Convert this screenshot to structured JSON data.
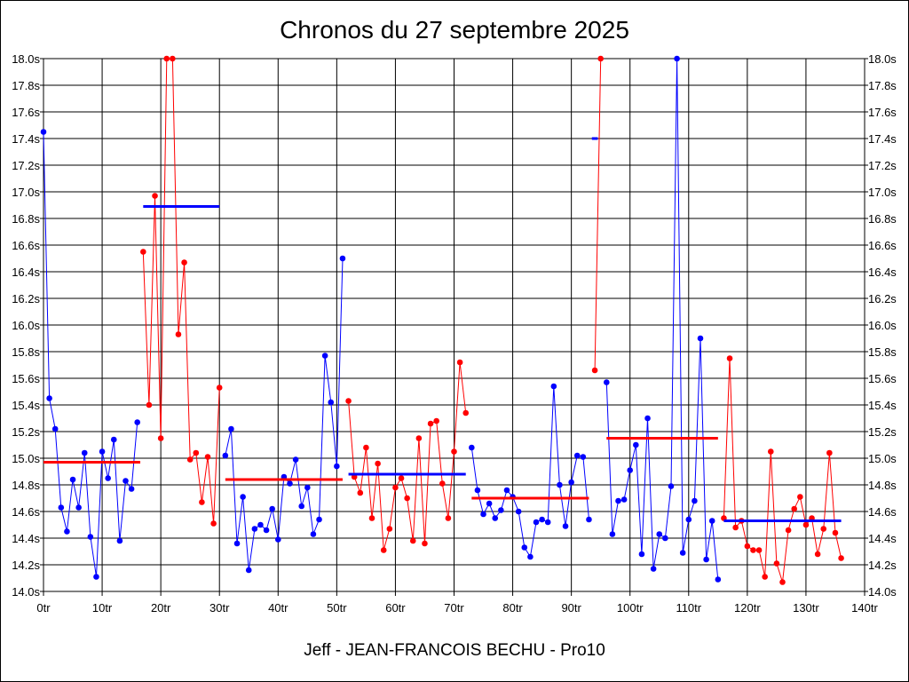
{
  "chart_data": {
    "type": "line",
    "title": "Chronos du 27 septembre 2025",
    "footer": "Jeff - JEAN-FRANCOIS BECHU - Pro10",
    "xlabel": "",
    "ylabel": "",
    "xlim": [
      0,
      140
    ],
    "ylim": [
      14.0,
      18.0
    ],
    "x_ticks": [
      "0tr",
      "10tr",
      "20tr",
      "30tr",
      "40tr",
      "50tr",
      "60tr",
      "70tr",
      "80tr",
      "90tr",
      "100tr",
      "110tr",
      "120tr",
      "130tr",
      "140tr"
    ],
    "y_ticks": [
      "14.0s",
      "14.2s",
      "14.4s",
      "14.6s",
      "14.8s",
      "15.0s",
      "15.2s",
      "15.4s",
      "15.6s",
      "15.8s",
      "16.0s",
      "16.2s",
      "16.4s",
      "16.6s",
      "16.8s",
      "17.0s",
      "17.2s",
      "17.4s",
      "17.6s",
      "17.8s",
      "18.0s"
    ],
    "grid": true,
    "colors": {
      "blue": "#0000ff",
      "red": "#ff0000"
    },
    "segments": [
      {
        "color": "blue",
        "mean": 14.97,
        "mean_range": [
          0,
          16.5
        ],
        "points": [
          [
            0,
            17.45
          ],
          [
            1,
            15.45
          ],
          [
            2,
            15.22
          ],
          [
            3,
            14.63
          ],
          [
            4,
            14.45
          ],
          [
            5,
            14.84
          ],
          [
            6,
            14.63
          ],
          [
            7,
            15.04
          ],
          [
            8,
            14.41
          ],
          [
            9,
            14.11
          ],
          [
            10,
            15.05
          ],
          [
            11,
            14.85
          ],
          [
            12,
            15.14
          ],
          [
            13,
            14.38
          ],
          [
            14,
            14.83
          ],
          [
            15,
            14.77
          ],
          [
            16,
            15.27
          ]
        ]
      },
      {
        "color": "red",
        "mean": 16.89,
        "mean_range": [
          17,
          30
        ],
        "points": [
          [
            17,
            16.55
          ],
          [
            18,
            15.4
          ],
          [
            19,
            16.97
          ],
          [
            20,
            15.15
          ],
          [
            21,
            18.0
          ],
          [
            22,
            18.0
          ],
          [
            23,
            15.93
          ],
          [
            24,
            16.47
          ],
          [
            25,
            14.99
          ],
          [
            26,
            15.04
          ],
          [
            27,
            14.67
          ],
          [
            28,
            15.01
          ],
          [
            29,
            14.51
          ],
          [
            30,
            15.53
          ]
        ]
      },
      {
        "color": "blue",
        "mean": 14.84,
        "mean_range": [
          31,
          51
        ],
        "points": [
          [
            31,
            15.02
          ],
          [
            32,
            15.22
          ],
          [
            33,
            14.36
          ],
          [
            34,
            14.71
          ],
          [
            35,
            14.16
          ],
          [
            36,
            14.47
          ],
          [
            37,
            14.5
          ],
          [
            38,
            14.46
          ],
          [
            39,
            14.62
          ],
          [
            40,
            14.39
          ],
          [
            41,
            14.86
          ],
          [
            42,
            14.81
          ],
          [
            43,
            14.99
          ],
          [
            44,
            14.64
          ],
          [
            45,
            14.78
          ],
          [
            46,
            14.43
          ],
          [
            47,
            14.54
          ],
          [
            48,
            15.77
          ],
          [
            49,
            15.42
          ],
          [
            50,
            14.94
          ],
          [
            51,
            16.5
          ]
        ]
      },
      {
        "color": "red",
        "mean": 14.77,
        "mean_range": [
          52,
          72
        ],
        "points": [
          [
            52,
            15.43
          ],
          [
            53,
            14.86
          ],
          [
            54,
            14.74
          ],
          [
            55,
            15.08
          ],
          [
            56,
            14.55
          ],
          [
            57,
            14.96
          ],
          [
            58,
            14.31
          ],
          [
            59,
            14.47
          ],
          [
            60,
            14.78
          ],
          [
            61,
            14.85
          ],
          [
            62,
            14.7
          ],
          [
            63,
            14.38
          ],
          [
            64,
            15.15
          ],
          [
            65,
            14.36
          ],
          [
            66,
            15.26
          ],
          [
            67,
            15.28
          ],
          [
            68,
            14.81
          ],
          [
            69,
            14.55
          ],
          [
            70,
            15.05
          ],
          [
            71,
            15.72
          ],
          [
            72,
            15.34
          ]
        ]
      },
      {
        "color": "blue",
        "mean": 14.88,
        "mean_range": [
          52,
          72
        ],
        "points": [
          [
            73,
            15.08
          ],
          [
            74,
            14.76
          ],
          [
            75,
            14.58
          ],
          [
            76,
            14.66
          ],
          [
            77,
            14.55
          ],
          [
            78,
            14.61
          ],
          [
            79,
            14.76
          ],
          [
            80,
            14.71
          ],
          [
            81,
            14.6
          ],
          [
            82,
            14.33
          ],
          [
            83,
            14.26
          ],
          [
            84,
            14.52
          ],
          [
            85,
            14.54
          ],
          [
            86,
            14.52
          ],
          [
            87,
            15.54
          ],
          [
            88,
            14.8
          ],
          [
            89,
            14.49
          ],
          [
            90,
            14.82
          ],
          [
            91,
            15.02
          ],
          [
            92,
            15.01
          ],
          [
            93,
            14.54
          ]
        ]
      },
      {
        "color": "red",
        "mean": 14.7,
        "mean_range": [
          73,
          93
        ],
        "points": [
          [
            94,
            15.66
          ],
          [
            95,
            18.0
          ]
        ]
      },
      {
        "color": "blue",
        "mean": 17.4,
        "mean_range": [
          93.5,
          94.5
        ],
        "points": [
          [
            96,
            15.57
          ],
          [
            97,
            14.43
          ],
          [
            98,
            14.68
          ],
          [
            99,
            14.69
          ],
          [
            100,
            14.91
          ],
          [
            101,
            15.1
          ],
          [
            102,
            14.28
          ],
          [
            103,
            15.3
          ],
          [
            104,
            14.17
          ],
          [
            105,
            14.43
          ],
          [
            106,
            14.4
          ],
          [
            107,
            14.79
          ],
          [
            108,
            18.0
          ],
          [
            109,
            14.29
          ],
          [
            110,
            14.54
          ],
          [
            111,
            14.68
          ],
          [
            112,
            15.9
          ],
          [
            113,
            14.24
          ],
          [
            114,
            14.53
          ],
          [
            115,
            14.09
          ]
        ]
      },
      {
        "color": "red",
        "mean": 15.15,
        "mean_range": [
          96,
          115
        ],
        "points": [
          [
            116,
            14.55
          ],
          [
            117,
            15.75
          ],
          [
            118,
            14.48
          ],
          [
            119,
            14.53
          ],
          [
            120,
            14.34
          ],
          [
            121,
            14.31
          ],
          [
            122,
            14.31
          ],
          [
            123,
            14.11
          ],
          [
            124,
            15.05
          ],
          [
            125,
            14.21
          ],
          [
            126,
            14.07
          ],
          [
            127,
            14.46
          ],
          [
            128,
            14.62
          ],
          [
            129,
            14.71
          ],
          [
            130,
            14.5
          ],
          [
            131,
            14.55
          ],
          [
            132,
            14.28
          ],
          [
            133,
            14.47
          ],
          [
            134,
            15.04
          ],
          [
            135,
            14.44
          ],
          [
            136,
            14.25
          ]
        ]
      },
      {
        "color": "blue",
        "mean": 14.53,
        "mean_range": [
          116,
          136
        ],
        "points": []
      }
    ]
  }
}
